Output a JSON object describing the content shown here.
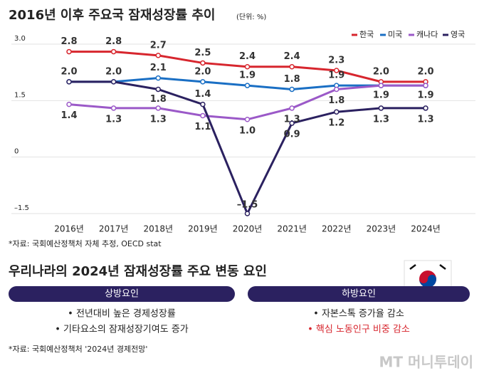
{
  "chart_data": {
    "type": "line",
    "title": "2016년 이후 주요국 잠재성장률 추이",
    "subtitle": "(단위: %)",
    "categories": [
      "2016년",
      "2017년",
      "2018년",
      "2019년",
      "2020년",
      "2021년",
      "2022년",
      "2023년",
      "2024년"
    ],
    "series": [
      {
        "name": "한국",
        "color": "#d7262e",
        "values": [
          2.8,
          2.8,
          2.7,
          2.5,
          2.4,
          2.4,
          2.3,
          2.0,
          2.0
        ],
        "value_labels": [
          "2.8",
          "2.8",
          "2.7",
          "2.5",
          "2.4",
          "2.4",
          "2.3",
          "2.0",
          "2.0"
        ]
      },
      {
        "name": "미국",
        "color": "#1a6fc4",
        "values": [
          2.0,
          2.0,
          2.1,
          2.0,
          1.9,
          1.8,
          1.9,
          1.9,
          1.9
        ],
        "value_labels": [
          "2.0",
          null,
          "2.1",
          "2.0",
          "1.9",
          "1.8",
          "1.9",
          "1.9",
          "1.9"
        ]
      },
      {
        "name": "캐나다",
        "color": "#9b59c8",
        "values": [
          1.4,
          1.3,
          1.3,
          1.1,
          1.0,
          1.3,
          1.8,
          1.9,
          1.9
        ],
        "value_labels": [
          "1.4",
          "1.3",
          "1.3",
          "1.1",
          "1.0",
          "1.3",
          "1.8",
          null,
          null
        ]
      },
      {
        "name": "영국",
        "color": "#2b2160",
        "values": [
          2.0,
          2.0,
          1.8,
          1.4,
          -1.5,
          0.9,
          1.2,
          1.3,
          1.3
        ],
        "value_labels": [
          null,
          "2.0",
          "1.8",
          "1.4",
          "–1.5",
          "0.9",
          "1.2",
          "1.3",
          "1.3"
        ]
      }
    ],
    "ylim": [
      -1.5,
      3.0
    ],
    "yticks": [
      {
        "value": -1.5,
        "label": "–1.5"
      },
      0,
      {
        "value": 1.5,
        "label": "1.5"
      },
      {
        "value": 3.0,
        "label": "3.0"
      }
    ],
    "grid": true,
    "legend": "top-right",
    "source": "*자료: 국회예산정책처 자체 추정, OECD stat"
  },
  "factors": {
    "title": "우리나라의 2024년 잠재성장률 주요 변동 요인",
    "upside": {
      "header": "상방요인",
      "items": [
        "• 전년대비 높은 경제성장률",
        "• 기타요소의 잠재성장기여도 증가"
      ]
    },
    "downside": {
      "header": "하방요인",
      "items": [
        "• 자본스톡 증가율 감소",
        "• 핵심 노동인구 비중 감소"
      ]
    },
    "source": "*자료: 국회예산정책처 '2024년 경제전망'"
  },
  "watermark": "MT 머니투데이"
}
